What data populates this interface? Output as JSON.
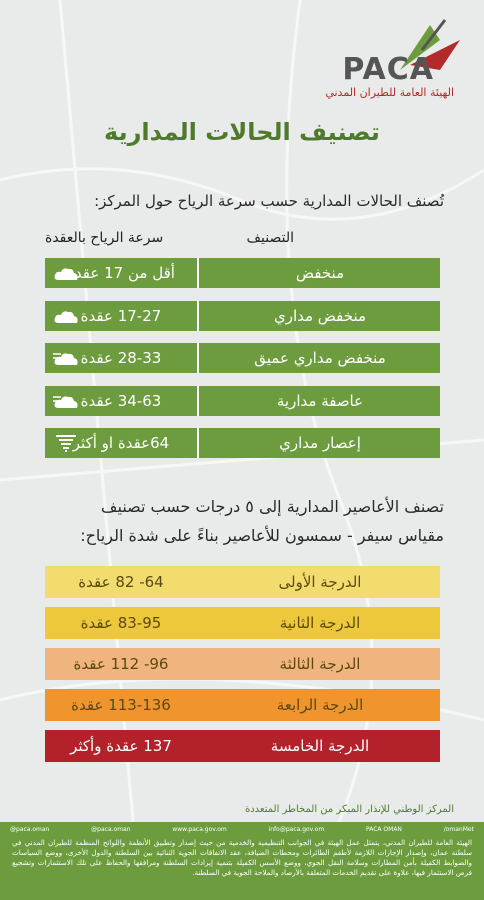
{
  "logo": {
    "brand": "PACA",
    "name": "الهيئة العامة للطيران المدني"
  },
  "title": "تصنيف الحالات المدارية",
  "section1": {
    "heading": "تُصنف الحالات المدارية حسب سرعة الرياح حول المركز:",
    "headers": [
      "التصنيف",
      "سرعة الرياح بالعقدة"
    ],
    "rows": [
      [
        "منخفض",
        "أقل من 17 عقدة"
      ],
      [
        "منخفض مداري",
        "17-27 عقدة"
      ],
      [
        "منخفض مداري عميق",
        "28-33 عقدة"
      ],
      [
        "عاصفة مدارية",
        "34-63 عقدة"
      ],
      [
        "إعصار مداري",
        "64عقدة او أكثر"
      ]
    ]
  },
  "section2": {
    "heading": [
      "تصنف الأعاصير المدارية إلى ٥ درجات حسب تصنيف",
      "مقياس سيفر - سمسون للأعاصير بناءً على شدة الرياح:"
    ],
    "rows": [
      [
        "الدرجة الأولى",
        "64- 82 عقدة"
      ],
      [
        "الدرجة الثانية",
        "83-95 عقدة"
      ],
      [
        "الدرجة الثالثة",
        "96- 112 عقدة"
      ],
      [
        "الدرجة الرابعة",
        "113-136 عقدة"
      ],
      [
        "الدرجة الخامسة",
        "137 عقدة وأكثر"
      ]
    ]
  },
  "footnote": "المركز الوطني للإنذار المبكر من المخاطر المتعددة",
  "footer": {
    "social": [
      "@paca.oman",
      "@paca.oman",
      "www.paca.gov.om",
      "info@paca.gov.om",
      "PACA OMAN",
      "/omanMet"
    ],
    "about": "الهيئة العامة للطيران المدني، يتمثل عمل الهيئة في الجوانب التنظيمية والخدمية من حيث إصدار وتطبيق الأنظمة واللوائح المنظمة للطيران المدني في سلطنة عمان، وإصدار الإجازات اللازمة لأطقم الطائرات ومحطات الضيافة، عقد الاتفاقات الجوية الثنائية بين السلطنة والدول الأخرى، ووضع السياسات والضوابط الكفيلة بأمن المطارات وسلامة النقل الجوي، ووضع الأسس الكفيلة بتنمية إيرادات السلطنة ومرافقها والحفاظ على تلك الاستثمارات وتشجيع فرص الاستثمار فيها، علاوة على تقديم الخدمات المتعلقة بالأرصاد والملاحة الجوية في السلطنة."
  }
}
